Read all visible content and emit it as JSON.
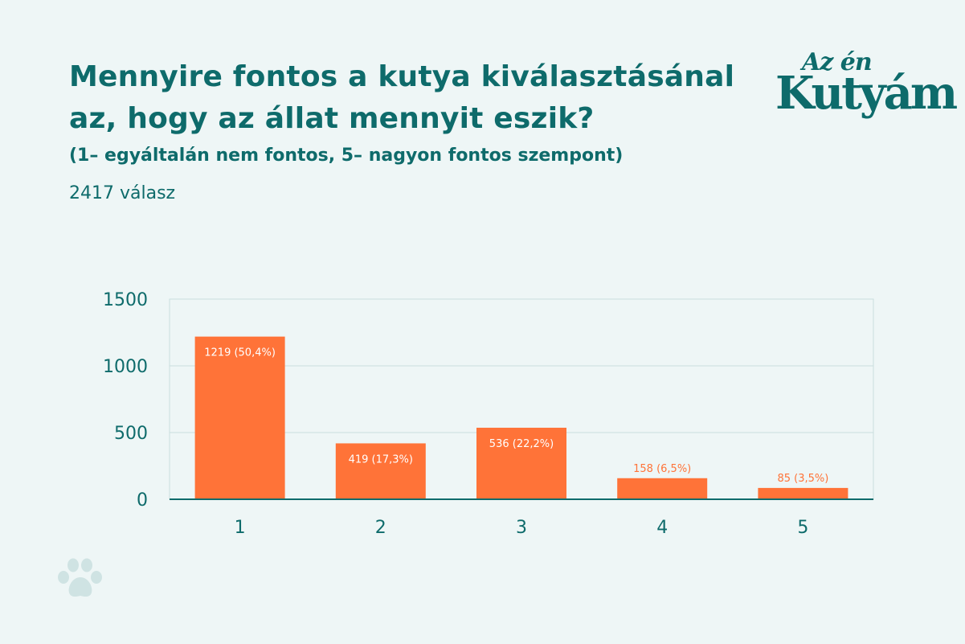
{
  "header": {
    "title": "Mennyire fontos a kutya kiválasztásánal az, hogy az állat mennyit eszik?",
    "subtitle": "(1– egyáltalán nem fontos, 5– nagyon fontos szempont)",
    "responses": "2417 válasz"
  },
  "logo": {
    "line1": "Az én",
    "line2": "Kutyám"
  },
  "colors": {
    "bar": "#ff7338",
    "teal": "#0e6b6b",
    "grid": "#c9dede",
    "background": "#eef6f6",
    "paw": "#cfe3e3"
  },
  "icons": {
    "paw": "paw-icon"
  },
  "chart_data": {
    "type": "bar",
    "categories": [
      "1",
      "2",
      "3",
      "4",
      "5"
    ],
    "values": [
      1219,
      419,
      536,
      158,
      85
    ],
    "labels": [
      "1219 (50,4%)",
      "419 (17,3%)",
      "536 (22,2%)",
      "158 (6,5%)",
      "85 (3,5%)"
    ],
    "yticks": [
      0,
      500,
      1000,
      1500
    ],
    "ylim": [
      0,
      1500
    ],
    "grid": true,
    "legend": "none"
  }
}
